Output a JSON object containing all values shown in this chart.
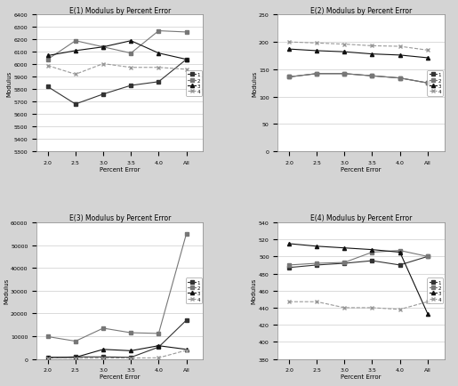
{
  "x_labels": [
    "2.0",
    "2.5",
    "3.0",
    "3.5",
    "4.0",
    "All"
  ],
  "x_positions": [
    0,
    1,
    2,
    3,
    4,
    5
  ],
  "e1": {
    "title": "E(1) Modulus by Percent Error",
    "load1": [
      5820,
      5680,
      5760,
      5830,
      5860,
      6040
    ],
    "load2": [
      6040,
      6190,
      6140,
      6090,
      6270,
      6260
    ],
    "load3": [
      6070,
      6110,
      6140,
      6190,
      6090,
      6040
    ],
    "load4": [
      5990,
      5920,
      6005,
      5975,
      5975,
      5960
    ],
    "ylim": [
      5300,
      6400
    ],
    "yticks": [
      5300,
      5400,
      5500,
      5600,
      5700,
      5800,
      5900,
      6000,
      6100,
      6200,
      6300,
      6400
    ]
  },
  "e2": {
    "title": "E(2) Modulus by Percent Error",
    "load1": [
      136,
      142,
      142,
      138,
      134,
      125
    ],
    "load2": [
      136,
      142,
      142,
      138,
      134,
      125
    ],
    "load3": [
      187,
      184,
      182,
      178,
      176,
      171
    ],
    "load4": [
      200,
      198,
      196,
      193,
      192,
      185
    ],
    "ylim": [
      0,
      250
    ],
    "yticks": [
      0,
      50,
      100,
      150,
      200,
      250
    ]
  },
  "e3": {
    "title": "E(3) Modulus by Percent Error",
    "load1": [
      500,
      900,
      900,
      700,
      5200,
      17000
    ],
    "load2": [
      9800,
      7800,
      13500,
      11500,
      11200,
      55000
    ],
    "load3": [
      700,
      700,
      4200,
      3600,
      5800,
      4200
    ],
    "load4": [
      400,
      300,
      400,
      400,
      500,
      3800
    ],
    "ylim": [
      0,
      60000
    ],
    "yticks": [
      0,
      10000,
      20000,
      30000,
      40000,
      50000,
      60000
    ]
  },
  "e4": {
    "title": "E(4) Modulus by Percent Error",
    "load1": [
      487,
      490,
      492,
      495,
      490,
      500
    ],
    "load2": [
      490,
      492,
      493,
      505,
      507,
      500
    ],
    "load3": [
      515,
      512,
      510,
      508,
      505,
      433
    ],
    "load4": [
      447,
      447,
      440,
      440,
      438,
      447
    ],
    "ylim": [
      380,
      540
    ],
    "yticks": [
      380,
      400,
      420,
      440,
      460,
      480,
      500,
      520,
      540
    ]
  },
  "series": [
    {
      "label": "1",
      "color": "#333333",
      "marker": "s",
      "linestyle": "-",
      "markersize": 3
    },
    {
      "label": "2",
      "color": "#777777",
      "marker": "s",
      "linestyle": "-",
      "markersize": 3
    },
    {
      "label": "3",
      "color": "#111111",
      "marker": "^",
      "linestyle": "-",
      "markersize": 3
    },
    {
      "label": "4",
      "color": "#999999",
      "marker": "x",
      "linestyle": "--",
      "markersize": 3
    }
  ],
  "fig_facecolor": "#d4d4d4",
  "subplot_facecolor": "#ffffff"
}
